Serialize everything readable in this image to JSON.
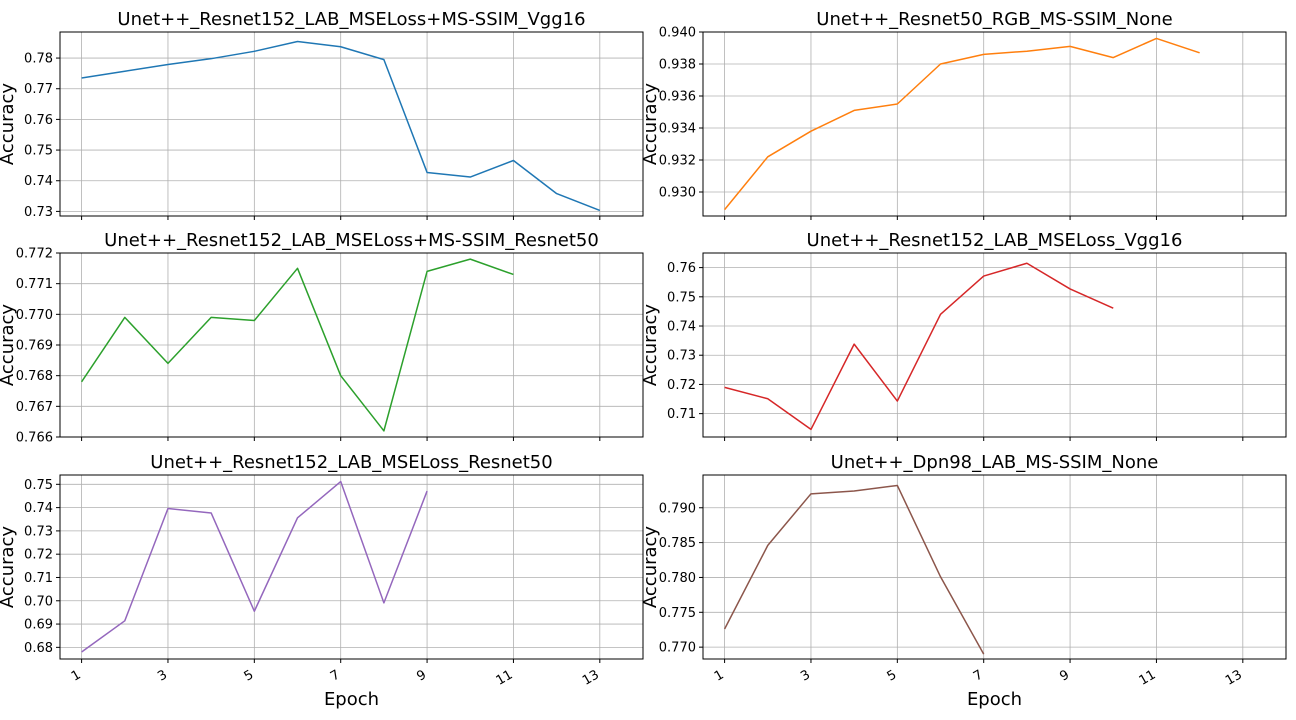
{
  "x_ticks": [
    "1",
    "3",
    "5",
    "7",
    "9",
    "11",
    "13"
  ],
  "chart_data": [
    {
      "type": "line",
      "title": "Unet++_Resnet152_LAB_MSELoss+MS-SSIM_Vgg16",
      "xlabel": "",
      "ylabel": "Accuracy",
      "color": "#1f77b4",
      "x": [
        1,
        2,
        3,
        4,
        5,
        6,
        7,
        8,
        9,
        10,
        11,
        12,
        13
      ],
      "values": [
        0.7735,
        0.7757,
        0.7779,
        0.7798,
        0.7822,
        0.7854,
        0.7837,
        0.7795,
        0.7427,
        0.7412,
        0.7466,
        0.7358,
        0.7303
      ],
      "xlim": [
        0.5,
        14.0
      ],
      "ylim": [
        0.7285,
        0.7885
      ],
      "yticks": [
        0.73,
        0.74,
        0.75,
        0.76,
        0.77,
        0.78
      ],
      "ytick_labels": [
        "0.73",
        "0.74",
        "0.75",
        "0.76",
        "0.77",
        "0.78"
      ],
      "grid": true
    },
    {
      "type": "line",
      "title": "Unet++_Resnet50_RGB_MS-SSIM_None",
      "xlabel": "",
      "ylabel": "Accuracy",
      "color": "#ff7f0e",
      "x": [
        1,
        2,
        3,
        4,
        5,
        6,
        7,
        8,
        9,
        10,
        11,
        12
      ],
      "values": [
        0.9289,
        0.9322,
        0.9338,
        0.9351,
        0.9355,
        0.938,
        0.9386,
        0.9388,
        0.9391,
        0.9384,
        0.9396,
        0.9387
      ],
      "xlim": [
        0.5,
        14.0
      ],
      "ylim": [
        0.9285,
        0.94
      ],
      "yticks": [
        0.93,
        0.932,
        0.934,
        0.936,
        0.938,
        0.94
      ],
      "ytick_labels": [
        "0.930",
        "0.932",
        "0.934",
        "0.936",
        "0.938",
        "0.940"
      ],
      "grid": true
    },
    {
      "type": "line",
      "title": "Unet++_Resnet152_LAB_MSELoss+MS-SSIM_Resnet50",
      "xlabel": "",
      "ylabel": "Accuracy",
      "color": "#2ca02c",
      "x": [
        1,
        2,
        3,
        4,
        5,
        6,
        7,
        8,
        9,
        10,
        11
      ],
      "values": [
        0.7678,
        0.7699,
        0.7684,
        0.7699,
        0.7698,
        0.7715,
        0.768,
        0.7662,
        0.7714,
        0.7718,
        0.7713
      ],
      "xlim": [
        0.5,
        14.0
      ],
      "ylim": [
        0.766,
        0.772
      ],
      "yticks": [
        0.766,
        0.767,
        0.768,
        0.769,
        0.77,
        0.771,
        0.772
      ],
      "ytick_labels": [
        "0.766",
        "0.767",
        "0.768",
        "0.769",
        "0.770",
        "0.771",
        "0.772"
      ],
      "grid": true
    },
    {
      "type": "line",
      "title": "Unet++_Resnet152_LAB_MSELoss_Vgg16",
      "xlabel": "",
      "ylabel": "Accuracy",
      "color": "#d62728",
      "x": [
        1,
        2,
        3,
        4,
        5,
        6,
        7,
        8,
        9,
        10
      ],
      "values": [
        0.719,
        0.7151,
        0.7046,
        0.7338,
        0.7143,
        0.744,
        0.7571,
        0.7615,
        0.7527,
        0.7461
      ],
      "xlim": [
        0.5,
        14.0
      ],
      "ylim": [
        0.702,
        0.765
      ],
      "yticks": [
        0.71,
        0.72,
        0.73,
        0.74,
        0.75,
        0.76
      ],
      "ytick_labels": [
        "0.71",
        "0.72",
        "0.73",
        "0.74",
        "0.75",
        "0.76"
      ],
      "grid": true
    },
    {
      "type": "line",
      "title": "Unet++_Resnet152_LAB_MSELoss_Resnet50",
      "xlabel": "Epoch",
      "ylabel": "Accuracy",
      "color": "#9467bd",
      "x": [
        1,
        2,
        3,
        4,
        5,
        6,
        7,
        8,
        9
      ],
      "values": [
        0.678,
        0.6914,
        0.7396,
        0.7377,
        0.6955,
        0.7356,
        0.7512,
        0.6991,
        0.7471
      ],
      "xlim": [
        0.5,
        14.0
      ],
      "ylim": [
        0.675,
        0.754
      ],
      "yticks": [
        0.68,
        0.69,
        0.7,
        0.71,
        0.72,
        0.73,
        0.74,
        0.75
      ],
      "ytick_labels": [
        "0.68",
        "0.69",
        "0.70",
        "0.71",
        "0.72",
        "0.73",
        "0.74",
        "0.75"
      ],
      "grid": true
    },
    {
      "type": "line",
      "title": "Unet++_Dpn98_LAB_MS-SSIM_None",
      "xlabel": "Epoch",
      "ylabel": "Accuracy",
      "color": "#8c564b",
      "x": [
        1,
        2,
        3,
        4,
        5,
        6,
        7
      ],
      "values": [
        0.7726,
        0.7846,
        0.792,
        0.7924,
        0.7932,
        0.7801,
        0.769
      ],
      "xlim": [
        0.5,
        14.0
      ],
      "ylim": [
        0.7683,
        0.7947
      ],
      "yticks": [
        0.77,
        0.775,
        0.78,
        0.785,
        0.79
      ],
      "ytick_labels": [
        "0.770",
        "0.775",
        "0.780",
        "0.785",
        "0.790"
      ],
      "grid": true
    }
  ]
}
